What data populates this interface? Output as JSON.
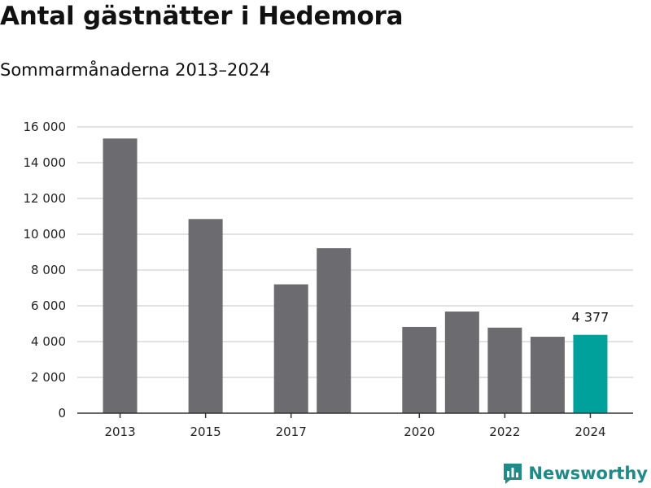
{
  "header": {
    "title": "Antal gästnätter i Hedemora",
    "subtitle": "Sommarmånaderna 2013–2024"
  },
  "brand": {
    "name": "Newsworthy",
    "icon": "newsworthy-logo-icon",
    "color": "#1f8a87"
  },
  "colors": {
    "bar": "#6b6b70",
    "highlight": "#00a19a",
    "grid": "#d9d9d9",
    "axis": "#333333"
  },
  "chart_data": {
    "type": "bar",
    "x": [
      2013,
      2015,
      2017,
      2018,
      2020,
      2021,
      2022,
      2023,
      2024
    ],
    "values": [
      15350,
      10850,
      7200,
      9220,
      4820,
      5680,
      4780,
      4270,
      4377
    ],
    "x_tick_labels": [
      "2013",
      "2015",
      "2017",
      "2020",
      "2022",
      "2024"
    ],
    "x_ticks": [
      2013,
      2015,
      2017,
      2020,
      2022,
      2024
    ],
    "y_tick_labels": [
      "0",
      "2 000",
      "4 000",
      "6 000",
      "8 000",
      "10 000",
      "12 000",
      "14 000",
      "16 000"
    ],
    "y_ticks": [
      0,
      2000,
      4000,
      6000,
      8000,
      10000,
      12000,
      14000,
      16000
    ],
    "ylim": [
      0,
      16000
    ],
    "xlim": [
      2012,
      2025
    ],
    "highlight_year": 2024,
    "data_label": {
      "x": 2024,
      "text": "4 377"
    },
    "grid": true,
    "xlabel": "",
    "ylabel": ""
  }
}
